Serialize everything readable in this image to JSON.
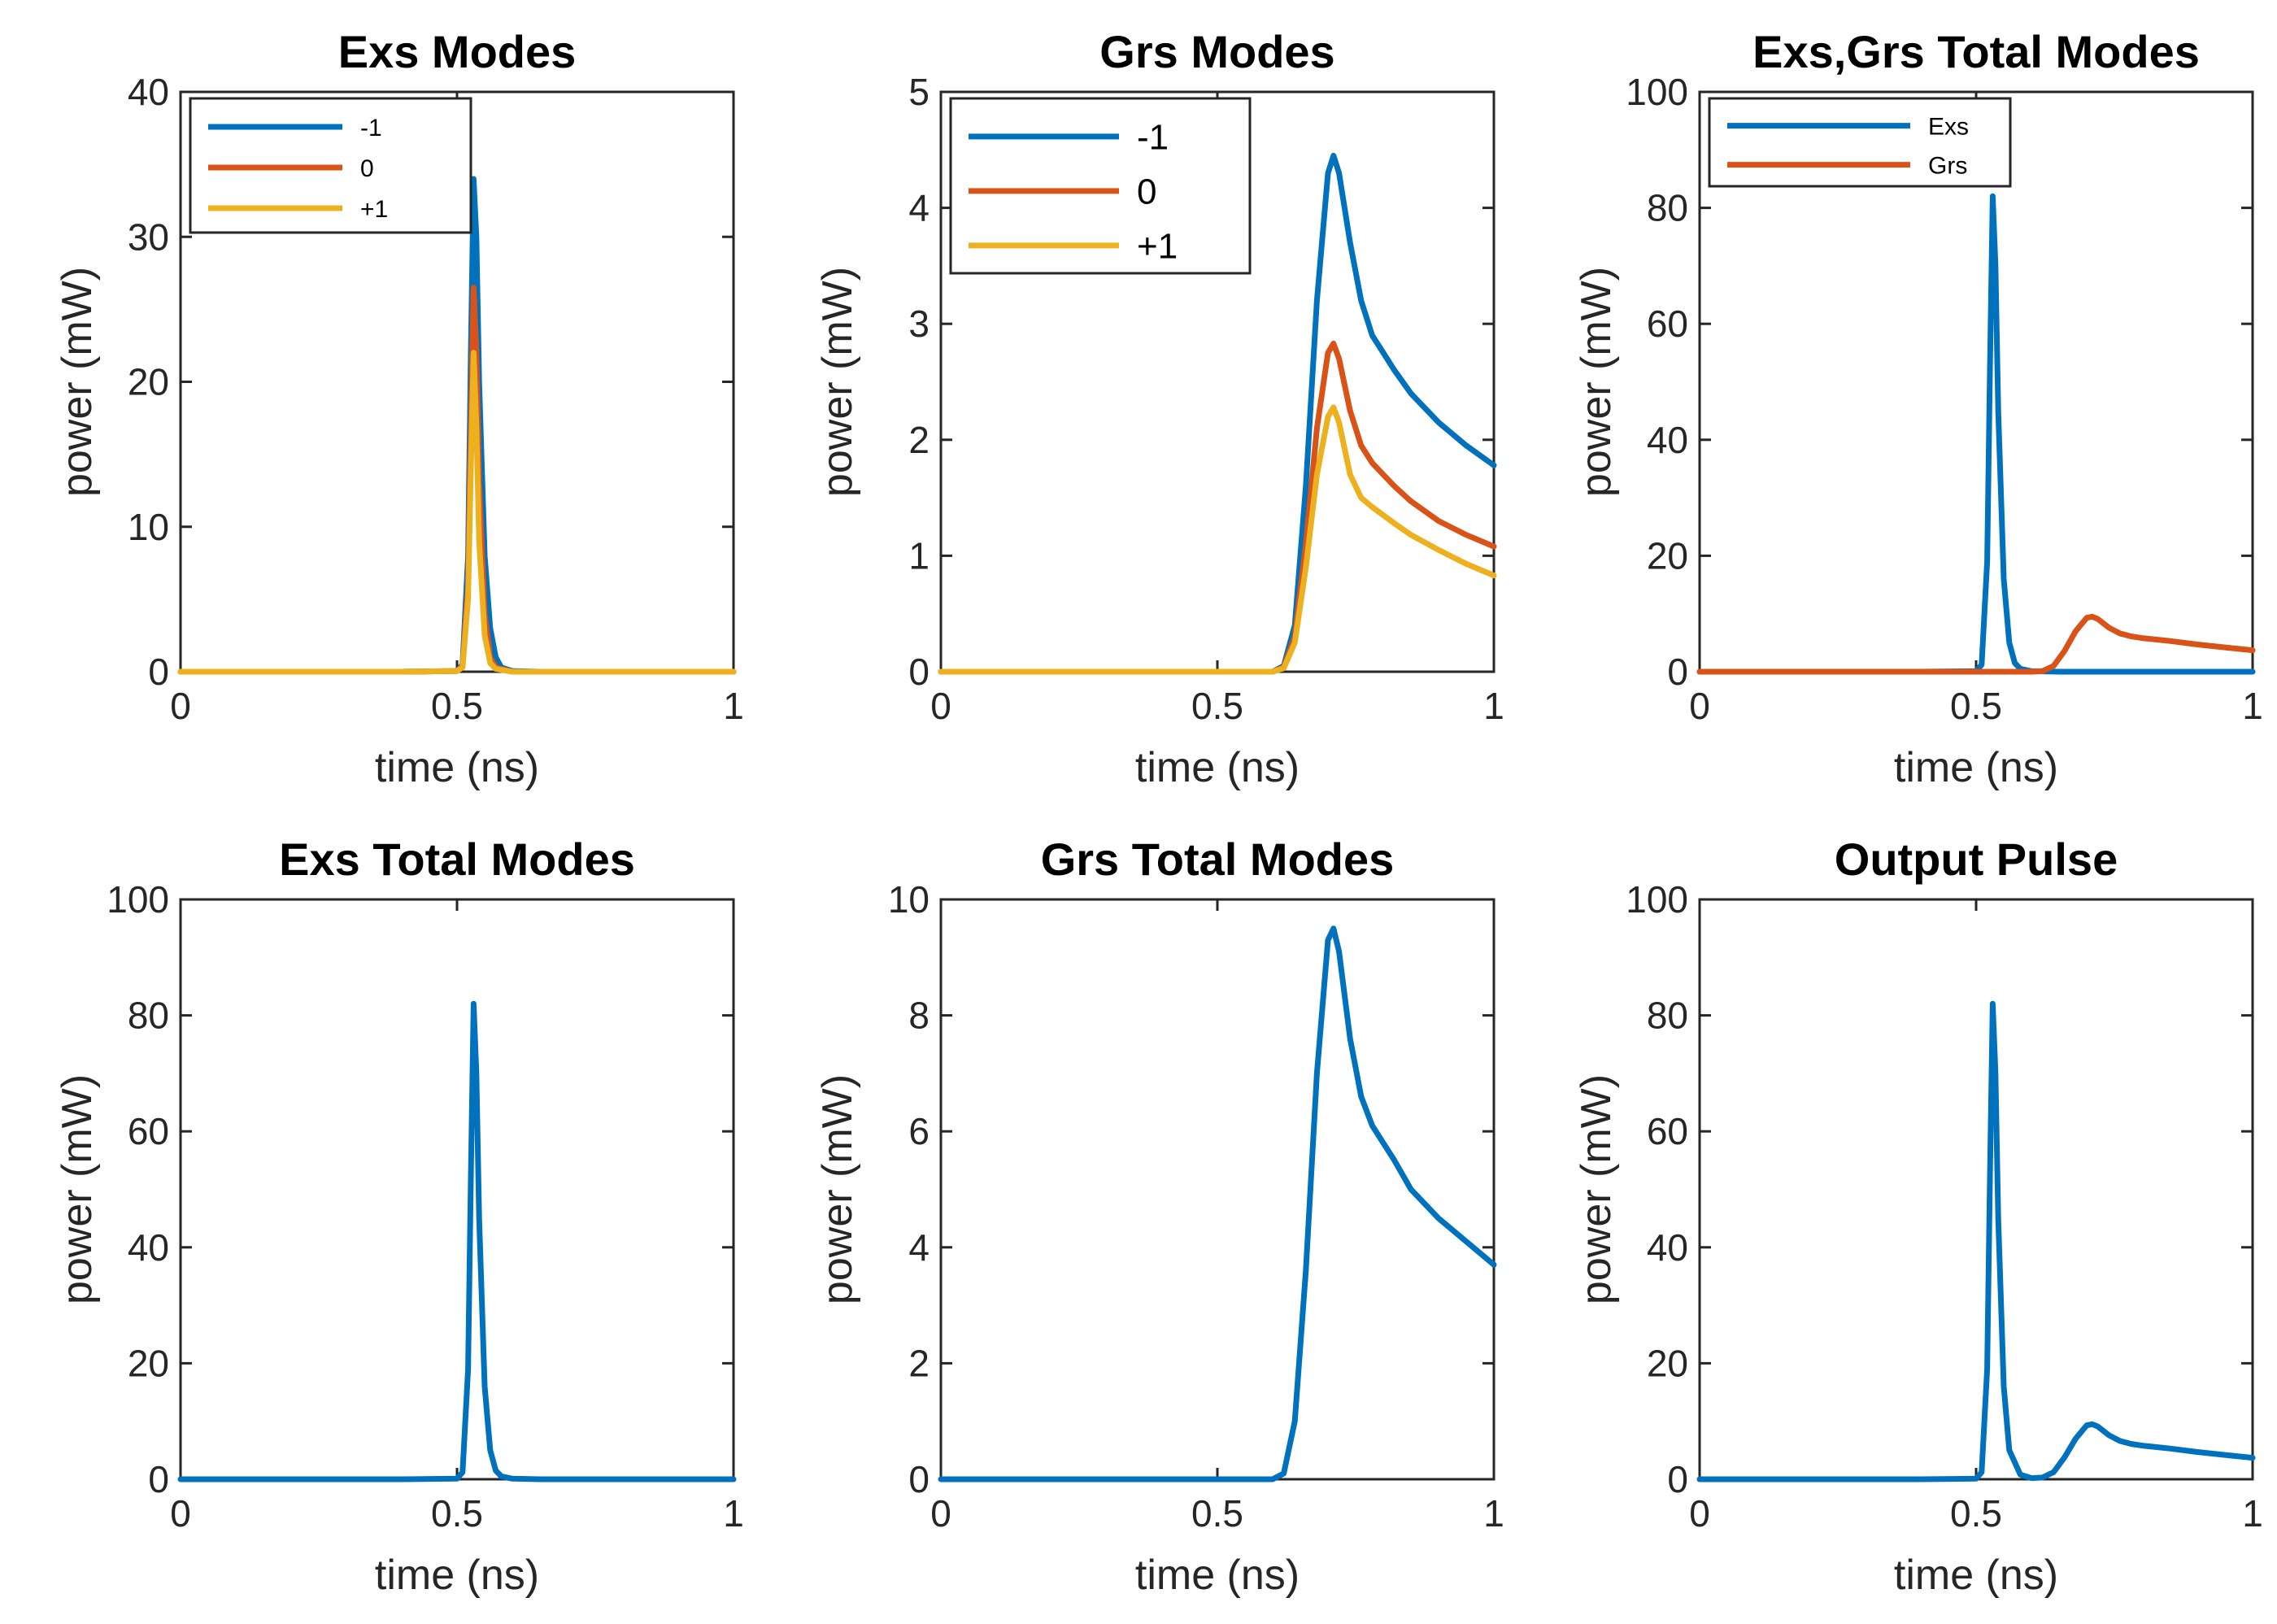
{
  "colors": {
    "blue": "#0072BD",
    "orange": "#D95319",
    "yellow": "#EDB120"
  },
  "chart_data": [
    {
      "type": "line",
      "title": "Exs Modes",
      "xlabel": "time (ns)",
      "ylabel": "power (mW)",
      "xlim": [
        0,
        1
      ],
      "ylim": [
        0,
        40
      ],
      "xticks": [
        "0",
        "0.5",
        "1"
      ],
      "yticks": [
        "0",
        "10",
        "20",
        "30",
        "40"
      ],
      "legend": "top-left",
      "series": [
        {
          "name": "-1",
          "color": "#0072BD",
          "x": [
            0,
            0.4,
            0.5,
            0.51,
            0.52,
            0.525,
            0.53,
            0.535,
            0.54,
            0.55,
            0.56,
            0.57,
            0.58,
            0.6,
            0.65,
            1
          ],
          "y": [
            0,
            0,
            0.05,
            0.5,
            8,
            22,
            34,
            30,
            20,
            8,
            3,
            1,
            0.3,
            0.05,
            0,
            0
          ]
        },
        {
          "name": "0",
          "color": "#D95319",
          "x": [
            0,
            0.4,
            0.5,
            0.51,
            0.52,
            0.525,
            0.53,
            0.535,
            0.54,
            0.55,
            0.56,
            0.57,
            0.6,
            1
          ],
          "y": [
            0,
            0,
            0.05,
            0.4,
            6,
            17,
            26.5,
            22,
            13,
            4,
            1,
            0.3,
            0,
            0
          ]
        },
        {
          "name": "+1",
          "color": "#EDB120",
          "x": [
            0,
            0.4,
            0.5,
            0.51,
            0.52,
            0.525,
            0.53,
            0.535,
            0.54,
            0.55,
            0.56,
            0.57,
            0.6,
            1
          ],
          "y": [
            0,
            0,
            0.05,
            0.3,
            5,
            14,
            22,
            17,
            9,
            2.5,
            0.6,
            0.2,
            0,
            0
          ]
        }
      ]
    },
    {
      "type": "line",
      "title": "Grs Modes",
      "xlabel": "time (ns)",
      "ylabel": "power (mW)",
      "xlim": [
        0,
        1
      ],
      "ylim": [
        0,
        5
      ],
      "xticks": [
        "0",
        "0.5",
        "1"
      ],
      "yticks": [
        "0",
        "1",
        "2",
        "3",
        "4",
        "5"
      ],
      "legend": "top-left",
      "series": [
        {
          "name": "-1",
          "color": "#0072BD",
          "x": [
            0,
            0.6,
            0.62,
            0.64,
            0.66,
            0.68,
            0.7,
            0.71,
            0.72,
            0.74,
            0.76,
            0.78,
            0.8,
            0.82,
            0.85,
            0.9,
            0.95,
            1
          ],
          "y": [
            0,
            0,
            0.05,
            0.4,
            1.6,
            3.2,
            4.3,
            4.45,
            4.3,
            3.7,
            3.2,
            2.9,
            2.75,
            2.6,
            2.4,
            2.15,
            1.95,
            1.78
          ]
        },
        {
          "name": "0",
          "color": "#D95319",
          "x": [
            0,
            0.6,
            0.62,
            0.64,
            0.66,
            0.68,
            0.7,
            0.71,
            0.72,
            0.74,
            0.76,
            0.78,
            0.8,
            0.82,
            0.85,
            0.9,
            0.95,
            1
          ],
          "y": [
            0,
            0,
            0.04,
            0.3,
            1.1,
            2.1,
            2.75,
            2.83,
            2.7,
            2.25,
            1.95,
            1.8,
            1.7,
            1.6,
            1.47,
            1.3,
            1.18,
            1.08
          ]
        },
        {
          "name": "+1",
          "color": "#EDB120",
          "x": [
            0,
            0.6,
            0.62,
            0.64,
            0.66,
            0.68,
            0.7,
            0.71,
            0.72,
            0.74,
            0.76,
            0.78,
            0.8,
            0.82,
            0.85,
            0.9,
            0.95,
            1
          ],
          "y": [
            0,
            0,
            0.03,
            0.25,
            0.9,
            1.7,
            2.2,
            2.28,
            2.15,
            1.7,
            1.5,
            1.42,
            1.35,
            1.28,
            1.18,
            1.05,
            0.93,
            0.83
          ]
        }
      ]
    },
    {
      "type": "line",
      "title": "Exs,Grs Total Modes",
      "xlabel": "time (ns)",
      "ylabel": "power (mW)",
      "xlim": [
        0,
        1
      ],
      "ylim": [
        0,
        100
      ],
      "xticks": [
        "0",
        "0.5",
        "1"
      ],
      "yticks": [
        "0",
        "20",
        "40",
        "60",
        "80",
        "100"
      ],
      "legend": "top-left",
      "series": [
        {
          "name": "Exs",
          "color": "#0072BD",
          "x": [
            0,
            0.4,
            0.5,
            0.51,
            0.52,
            0.525,
            0.53,
            0.535,
            0.54,
            0.55,
            0.56,
            0.57,
            0.58,
            0.6,
            0.65,
            1
          ],
          "y": [
            0,
            0,
            0.1,
            1.2,
            19,
            52,
            82,
            70,
            45,
            16,
            5,
            1.5,
            0.5,
            0.1,
            0,
            0
          ]
        },
        {
          "name": "Grs",
          "color": "#D95319",
          "x": [
            0,
            0.6,
            0.62,
            0.64,
            0.66,
            0.68,
            0.7,
            0.71,
            0.72,
            0.74,
            0.76,
            0.78,
            0.8,
            0.85,
            0.9,
            0.95,
            1
          ],
          "y": [
            0,
            0,
            0.1,
            1,
            3.6,
            7,
            9.3,
            9.5,
            9.1,
            7.6,
            6.6,
            6.1,
            5.8,
            5.3,
            4.7,
            4.2,
            3.7
          ]
        }
      ]
    },
    {
      "type": "line",
      "title": "Exs Total Modes",
      "xlabel": "time (ns)",
      "ylabel": "power (mW)",
      "xlim": [
        0,
        1
      ],
      "ylim": [
        0,
        100
      ],
      "xticks": [
        "0",
        "0.5",
        "1"
      ],
      "yticks": [
        "0",
        "20",
        "40",
        "60",
        "80",
        "100"
      ],
      "series": [
        {
          "color": "#0072BD",
          "x": [
            0,
            0.4,
            0.5,
            0.51,
            0.52,
            0.525,
            0.53,
            0.535,
            0.54,
            0.55,
            0.56,
            0.57,
            0.58,
            0.6,
            0.65,
            1
          ],
          "y": [
            0,
            0,
            0.1,
            1.2,
            19,
            52,
            82,
            70,
            45,
            16,
            5,
            1.5,
            0.5,
            0.1,
            0,
            0
          ]
        }
      ]
    },
    {
      "type": "line",
      "title": "Grs Total Modes",
      "xlabel": "time (ns)",
      "ylabel": "power (mW)",
      "xlim": [
        0,
        1
      ],
      "ylim": [
        0,
        10
      ],
      "xticks": [
        "0",
        "0.5",
        "1"
      ],
      "yticks": [
        "0",
        "2",
        "4",
        "6",
        "8",
        "10"
      ],
      "series": [
        {
          "color": "#0072BD",
          "x": [
            0,
            0.6,
            0.62,
            0.64,
            0.66,
            0.68,
            0.7,
            0.71,
            0.72,
            0.74,
            0.76,
            0.78,
            0.8,
            0.82,
            0.85,
            0.9,
            0.95,
            1
          ],
          "y": [
            0,
            0,
            0.1,
            1,
            3.6,
            7,
            9.3,
            9.5,
            9.1,
            7.6,
            6.6,
            6.1,
            5.8,
            5.5,
            5.0,
            4.5,
            4.1,
            3.7
          ]
        }
      ]
    },
    {
      "type": "line",
      "title": "Output Pulse",
      "xlabel": "time (ns)",
      "ylabel": "power (mW)",
      "xlim": [
        0,
        1
      ],
      "ylim": [
        0,
        100
      ],
      "xticks": [
        "0",
        "0.5",
        "1"
      ],
      "yticks": [
        "0",
        "20",
        "40",
        "60",
        "80",
        "100"
      ],
      "series": [
        {
          "color": "#0072BD",
          "x": [
            0,
            0.4,
            0.5,
            0.51,
            0.52,
            0.525,
            0.53,
            0.535,
            0.54,
            0.55,
            0.56,
            0.58,
            0.6,
            0.62,
            0.64,
            0.66,
            0.68,
            0.7,
            0.71,
            0.72,
            0.74,
            0.76,
            0.78,
            0.8,
            0.85,
            0.9,
            0.95,
            1
          ],
          "y": [
            0,
            0,
            0.1,
            1.2,
            19,
            52,
            82,
            70,
            45,
            16,
            5,
            0.8,
            0.2,
            0.3,
            1.2,
            3.8,
            7,
            9.3,
            9.5,
            9.1,
            7.6,
            6.6,
            6.1,
            5.8,
            5.3,
            4.7,
            4.2,
            3.7
          ]
        }
      ]
    }
  ]
}
